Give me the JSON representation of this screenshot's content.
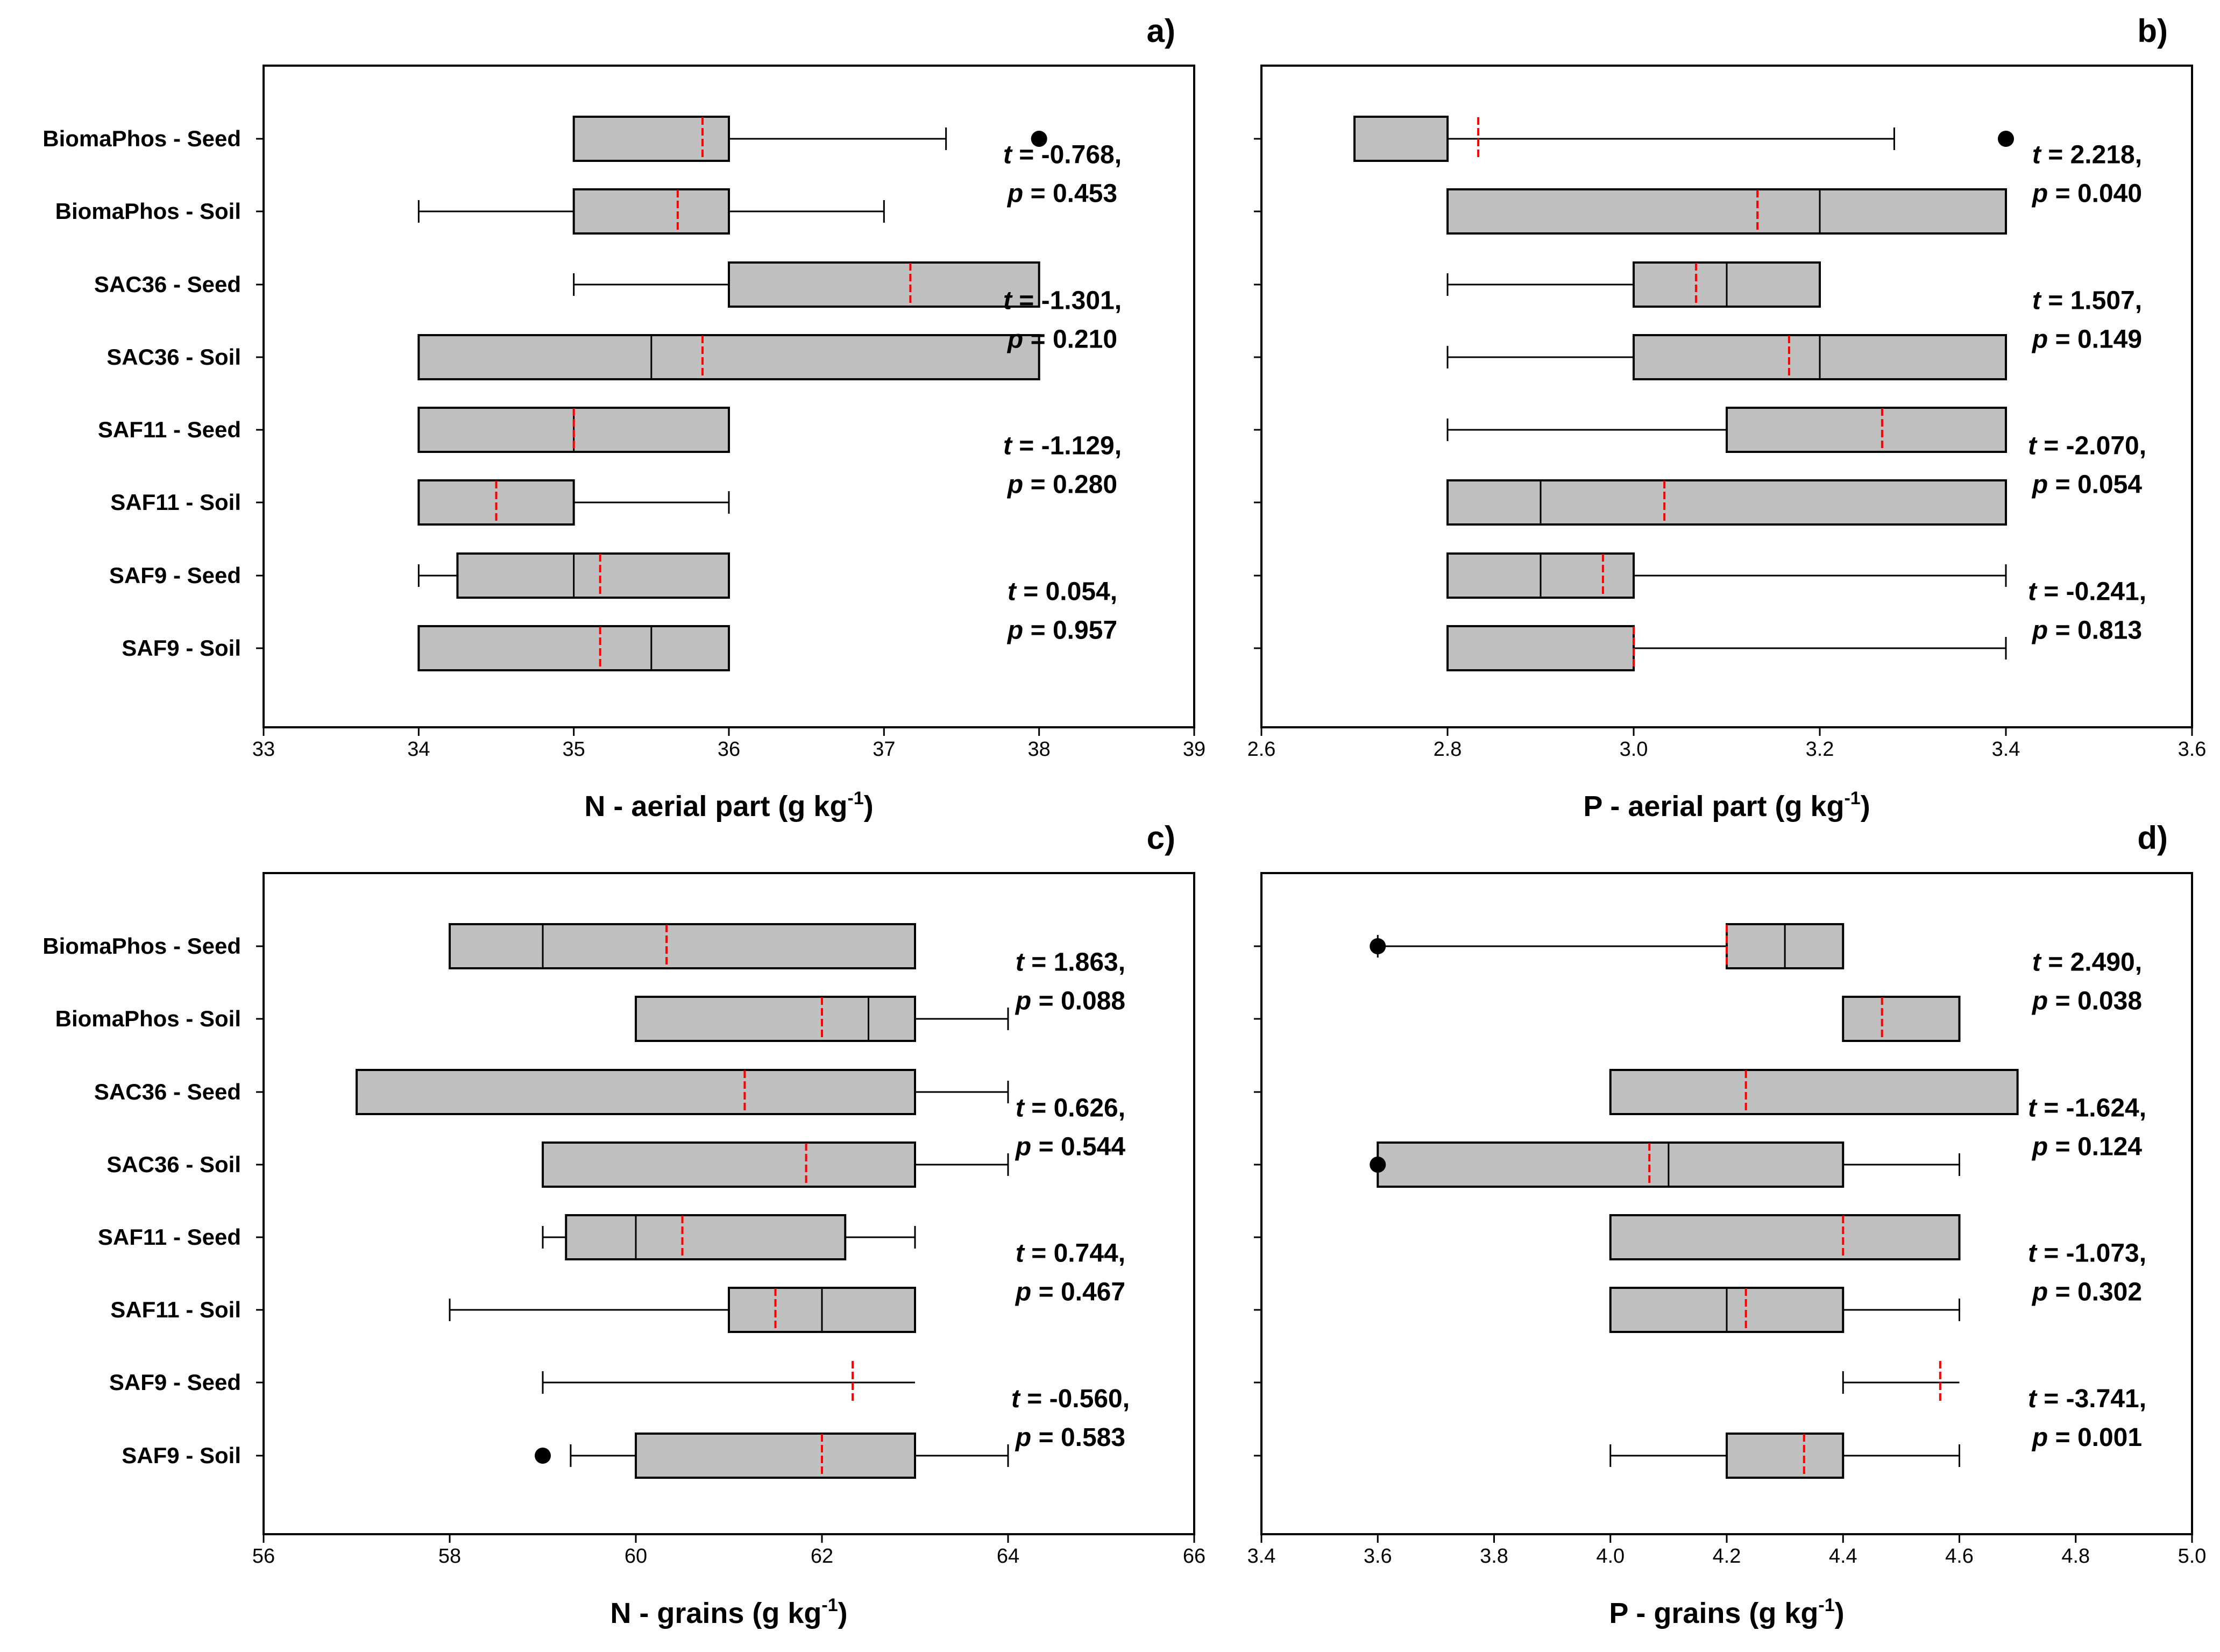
{
  "chart_data": [
    {
      "type": "box",
      "panel": "a)",
      "xlabel": "N - aerial part (g kg",
      "xlabel_sup": "-1",
      "xlabel_tail": ")",
      "xlim": [
        33,
        39
      ],
      "ticks": [
        33,
        34,
        35,
        36,
        37,
        38,
        39
      ],
      "tick_labels": [
        "33",
        "34",
        "35",
        "36",
        "37",
        "38",
        "39"
      ],
      "categories": [
        "BiomaPhos - Seed",
        "BiomaPhos - Soil",
        "SAC36 - Seed",
        "SAC36 - Soil",
        "SAF11 - Seed",
        "SAF11 - Soil",
        "SAF9 - Seed",
        "SAF9 - Soil"
      ],
      "boxes": [
        {
          "lw": 35,
          "q1": 35,
          "median": 35,
          "q3": 36,
          "uw": 37.4,
          "mean": 35.83,
          "outliers": [
            38
          ]
        },
        {
          "lw": 34,
          "q1": 35,
          "median": 35,
          "q3": 36,
          "uw": 37,
          "mean": 35.67,
          "outliers": []
        },
        {
          "lw": 35,
          "q1": 36,
          "median": 38,
          "q3": 38,
          "uw": 38,
          "mean": 37.17,
          "outliers": []
        },
        {
          "lw": 34,
          "q1": 34,
          "median": 35.5,
          "q3": 38,
          "uw": 38,
          "mean": 35.83,
          "outliers": []
        },
        {
          "lw": 34,
          "q1": 34,
          "median": 35,
          "q3": 36,
          "uw": 36,
          "mean": 35,
          "outliers": []
        },
        {
          "lw": 34,
          "q1": 34,
          "median": 34,
          "q3": 35,
          "uw": 36,
          "mean": 34.5,
          "outliers": []
        },
        {
          "lw": 34,
          "q1": 34.25,
          "median": 35,
          "q3": 36,
          "uw": 36,
          "mean": 35.17,
          "outliers": []
        },
        {
          "lw": 34,
          "q1": 34,
          "median": 35.5,
          "q3": 36,
          "uw": 36,
          "mean": 35.17,
          "outliers": []
        }
      ],
      "tests": [
        {
          "t": "-0.768,",
          "p": "0.453"
        },
        {
          "t": "-1.301,",
          "p": "0.210"
        },
        {
          "t": "-1.129,",
          "p": "0.280"
        },
        {
          "t": "0.054,",
          "p": "0.957"
        }
      ]
    },
    {
      "type": "box",
      "panel": "b)",
      "xlabel": "P - aerial part (g kg",
      "xlabel_sup": "-1",
      "xlabel_tail": ")",
      "xlim": [
        2.6,
        3.6
      ],
      "ticks": [
        2.6,
        2.8,
        3.0,
        3.2,
        3.4,
        3.6
      ],
      "tick_labels": [
        "2.6",
        "2.8",
        "3.0",
        "3.2",
        "3.4",
        "3.6"
      ],
      "categories": [
        "BiomaPhos - Seed",
        "BiomaPhos - Soil",
        "SAC36 - Seed",
        "SAC36 - Soil",
        "SAF11 - Seed",
        "SAF11 - Soil",
        "SAF9 - Seed",
        "SAF9 - Soil"
      ],
      "boxes": [
        {
          "lw": 2.7,
          "q1": 2.7,
          "median": 2.8,
          "q3": 2.8,
          "uw": 3.28,
          "mean": 2.833,
          "outliers": [
            3.4
          ]
        },
        {
          "lw": 2.8,
          "q1": 2.8,
          "median": 3.2,
          "q3": 3.4,
          "uw": 3.4,
          "mean": 3.133,
          "outliers": []
        },
        {
          "lw": 2.8,
          "q1": 3.0,
          "median": 3.1,
          "q3": 3.2,
          "uw": 3.2,
          "mean": 3.067,
          "outliers": []
        },
        {
          "lw": 2.8,
          "q1": 3.0,
          "median": 3.2,
          "q3": 3.4,
          "uw": 3.4,
          "mean": 3.167,
          "outliers": []
        },
        {
          "lw": 2.8,
          "q1": 3.1,
          "median": 3.4,
          "q3": 3.4,
          "uw": 3.4,
          "mean": 3.267,
          "outliers": []
        },
        {
          "lw": 2.8,
          "q1": 2.8,
          "median": 2.9,
          "q3": 3.4,
          "uw": 3.4,
          "mean": 3.033,
          "outliers": []
        },
        {
          "lw": 2.8,
          "q1": 2.8,
          "median": 2.9,
          "q3": 3.0,
          "uw": 3.4,
          "mean": 2.967,
          "outliers": []
        },
        {
          "lw": 2.8,
          "q1": 2.8,
          "median": 3.0,
          "q3": 3.0,
          "uw": 3.4,
          "mean": 3.0,
          "outliers": []
        }
      ],
      "tests": [
        {
          "t": "2.218,",
          "p": "0.040"
        },
        {
          "t": "1.507,",
          "p": "0.149"
        },
        {
          "t": "-2.070,",
          "p": "0.054"
        },
        {
          "t": "-0.241,",
          "p": "0.813"
        }
      ]
    },
    {
      "type": "box",
      "panel": "c)",
      "xlabel": "N - grains (g kg",
      "xlabel_sup": "-1",
      "xlabel_tail": ")",
      "xlim": [
        56,
        66
      ],
      "ticks": [
        56,
        58,
        60,
        62,
        64,
        66
      ],
      "tick_labels": [
        "56",
        "58",
        "60",
        "62",
        "64",
        "66"
      ],
      "categories": [
        "BiomaPhos - Seed",
        "BiomaPhos - Soil",
        "SAC36 - Seed",
        "SAC36 - Soil",
        "SAF11 - Seed",
        "SAF11 - Soil",
        "SAF9 - Seed",
        "SAF9 - Soil"
      ],
      "boxes": [
        {
          "lw": 58,
          "q1": 58,
          "median": 59,
          "q3": 63,
          "uw": 63,
          "mean": 60.33,
          "outliers": []
        },
        {
          "lw": 60,
          "q1": 60,
          "median": 62.5,
          "q3": 63,
          "uw": 64,
          "mean": 62,
          "outliers": []
        },
        {
          "lw": 57,
          "q1": 57,
          "median": 63,
          "q3": 63,
          "uw": 64,
          "mean": 61.17,
          "outliers": []
        },
        {
          "lw": 59,
          "q1": 59,
          "median": 63,
          "q3": 63,
          "uw": 64,
          "mean": 61.83,
          "outliers": []
        },
        {
          "lw": 59,
          "q1": 59.25,
          "median": 60,
          "q3": 62.25,
          "uw": 63,
          "mean": 60.5,
          "outliers": []
        },
        {
          "lw": 58,
          "q1": 61,
          "median": 62,
          "q3": 63,
          "uw": 63,
          "mean": 61.5,
          "outliers": []
        },
        {
          "lw": 59,
          "q1": 63,
          "median": 63,
          "q3": 63,
          "uw": 63,
          "mean": 62.33,
          "outliers": []
        },
        {
          "lw": 59.3,
          "q1": 60,
          "median": 63,
          "q3": 63,
          "uw": 64,
          "mean": 62,
          "outliers": [
            59
          ]
        }
      ],
      "tests": [
        {
          "t": "1.863,",
          "p": "0.088"
        },
        {
          "t": "0.626,",
          "p": "0.544"
        },
        {
          "t": "0.744,",
          "p": "0.467"
        },
        {
          "t": "-0.560,",
          "p": "0.583"
        }
      ]
    },
    {
      "type": "box",
      "panel": "d)",
      "xlabel": "P - grains (g kg",
      "xlabel_sup": "-1",
      "xlabel_tail": ")",
      "xlim": [
        3.4,
        5.0
      ],
      "ticks": [
        3.4,
        3.6,
        3.8,
        4.0,
        4.2,
        4.4,
        4.6,
        4.8,
        5.0
      ],
      "tick_labels": [
        "3.4",
        "3.6",
        "3.8",
        "4.0",
        "4.2",
        "4.4",
        "4.6",
        "4.8",
        "5.0"
      ],
      "categories": [
        "BiomaPhos - Seed",
        "BiomaPhos - Soil",
        "SAC36 - Seed",
        "SAC36 - Soil",
        "SAF11 - Seed",
        "SAF11 - Soil",
        "SAF9 - Seed",
        "SAF9 - Soil"
      ],
      "boxes": [
        {
          "lw": 3.6,
          "q1": 4.2,
          "median": 4.3,
          "q3": 4.4,
          "uw": 4.4,
          "mean": 4.2,
          "outliers": [
            3.6
          ]
        },
        {
          "lw": 4.4,
          "q1": 4.4,
          "median": 4.6,
          "q3": 4.6,
          "uw": 4.6,
          "mean": 4.467,
          "outliers": []
        },
        {
          "lw": 4.0,
          "q1": 4.0,
          "median": 4.7,
          "q3": 4.7,
          "uw": 4.7,
          "mean": 4.233,
          "outliers": []
        },
        {
          "lw": 3.6,
          "q1": 3.6,
          "median": 4.1,
          "q3": 4.4,
          "uw": 4.6,
          "mean": 4.067,
          "outliers": [
            3.6
          ]
        },
        {
          "lw": 4.0,
          "q1": 4.0,
          "median": 4.6,
          "q3": 4.6,
          "uw": 4.6,
          "mean": 4.4,
          "outliers": []
        },
        {
          "lw": 4.0,
          "q1": 4.0,
          "median": 4.2,
          "q3": 4.4,
          "uw": 4.6,
          "mean": 4.233,
          "outliers": []
        },
        {
          "lw": 4.4,
          "q1": 4.6,
          "median": 4.6,
          "q3": 4.6,
          "uw": 4.6,
          "mean": 4.567,
          "outliers": []
        },
        {
          "lw": 4.0,
          "q1": 4.2,
          "median": 4.4,
          "q3": 4.4,
          "uw": 4.6,
          "mean": 4.333,
          "outliers": []
        }
      ],
      "tests": [
        {
          "t": "2.490,",
          "p": "0.038"
        },
        {
          "t": "-1.624,",
          "p": "0.124"
        },
        {
          "t": "-1.073,",
          "p": "0.302"
        },
        {
          "t": "-3.741,",
          "p": "0.001"
        }
      ]
    }
  ],
  "stat_labels": {
    "t": "t",
    "eq": " = ",
    "p": "p"
  },
  "colors": {
    "box_fill": "#c0c0c0",
    "mean_line": "#ff0000",
    "stroke": "#000000",
    "background": "#ffffff"
  }
}
